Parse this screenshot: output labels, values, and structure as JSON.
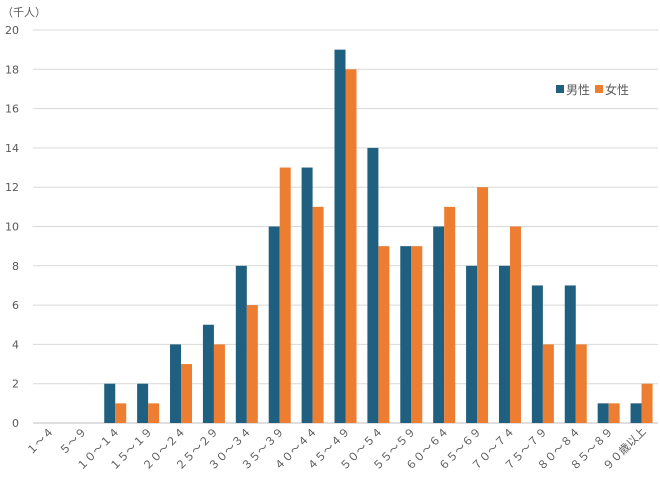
{
  "chart_data": {
    "type": "bar",
    "title": "",
    "xlabel": "",
    "ylabel": "",
    "unit_label": "（千人）",
    "ylim": [
      0,
      20
    ],
    "yticks": [
      0,
      2,
      4,
      6,
      8,
      10,
      12,
      14,
      16,
      18,
      20
    ],
    "grid": true,
    "legend_position": "top-right",
    "categories": [
      "１～４",
      "５～９",
      "１０～１４",
      "１５～１９",
      "２０～２４",
      "２５～２９",
      "３０～３４",
      "３５～３９",
      "４０～４４",
      "４５～４９",
      "５０～５４",
      "５５～５９",
      "６０～６４",
      "６５～６９",
      "７０～７４",
      "７５～７９",
      "８０～８４",
      "８５～８９",
      "９０歳以上"
    ],
    "series": [
      {
        "name": "男性",
        "color": "#1F5F7F",
        "values": [
          0,
          0,
          2,
          2,
          4,
          5,
          8,
          10,
          13,
          19,
          14,
          9,
          10,
          8,
          8,
          7,
          7,
          1,
          1
        ]
      },
      {
        "name": "女性",
        "color": "#ED7D31",
        "values": [
          0,
          0,
          1,
          1,
          3,
          4,
          6,
          13,
          11,
          18,
          9,
          9,
          11,
          12,
          10,
          4,
          4,
          1,
          2
        ]
      }
    ]
  }
}
